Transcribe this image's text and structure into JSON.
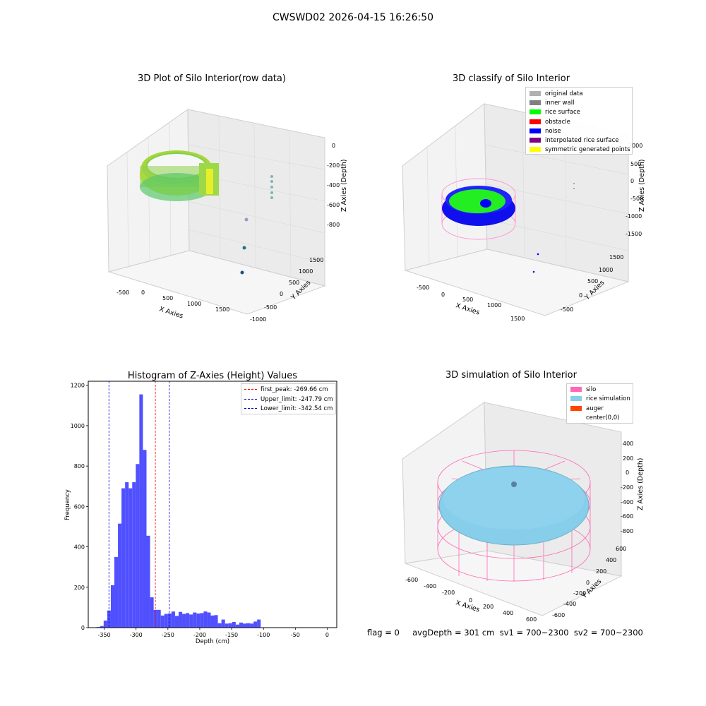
{
  "figure_title": "CWSWD02 2026-04-15 16:26:50",
  "status_line": "flag = 0     avgDepth = 301 cm  sv1 = 700~2300  sv2 = 700~2300",
  "colors": {
    "silo": "#ff69b4",
    "rice_simulation": "#87ceeb",
    "auger": "#ff4500",
    "original": "#b0b0b0",
    "inner_wall": "#808080",
    "rice_surface": "#00ff00",
    "obstacle": "#ff0000",
    "noise": "#0000ff",
    "interp": "#800080",
    "symmetric": "#ffff00",
    "hist_bar": "#5050ff",
    "peak_line": "#ff0000",
    "limit_line": "#0000cc"
  },
  "panels": {
    "raw": {
      "title": "3D Plot of Silo Interior(row data)",
      "x_label": "X Axies",
      "y_label": "Y Axies",
      "z_label": "Z Axies (Depth)",
      "x_ticks": [
        "-500",
        "0",
        "500",
        "1000",
        "1500"
      ],
      "y_ticks": [
        "1500",
        "1000",
        "500",
        "0",
        "-500",
        "-1000"
      ],
      "z_ticks": [
        "0",
        "-200",
        "-400",
        "-600",
        "-800"
      ]
    },
    "classify": {
      "title": "3D classify of Silo Interior",
      "x_label": "X Axies",
      "y_label": "Y Axies",
      "z_label": "Z Axies (Depth)",
      "x_ticks": [
        "-500",
        "0",
        "500",
        "1000",
        "1500"
      ],
      "y_ticks": [
        "1500",
        "1000",
        "500",
        "0",
        "-500"
      ],
      "z_ticks": [
        "1000",
        "500",
        "0",
        "-500",
        "-1000",
        "-1500"
      ],
      "legend": [
        "original data",
        "inner wall",
        "rice surface",
        "obstacle",
        "noise",
        "interpolated rice surface",
        "symmetric generated points"
      ]
    },
    "simulation": {
      "title": "3D simulation of Silo Interior",
      "x_label": "X Axies",
      "y_label": "Y Axies",
      "z_label": "Z Axies (Depth)",
      "x_ticks": [
        "-600",
        "-400",
        "-200",
        "0",
        "200",
        "400",
        "600"
      ],
      "y_ticks": [
        "600",
        "400",
        "200",
        "0",
        "-200",
        "-400",
        "-600"
      ],
      "z_ticks": [
        "400",
        "200",
        "0",
        "-200",
        "-400",
        "-600",
        "-800"
      ],
      "legend": [
        "silo",
        "rice simulation",
        "auger",
        "center(0,0)"
      ]
    }
  },
  "chart_data": {
    "type": "bar",
    "title": "Histogram of Z-Axies (Height) Values",
    "xlabel": "Depth (cm)",
    "ylabel": "Frequency",
    "xlim": [
      -375,
      15
    ],
    "ylim": [
      0,
      1220
    ],
    "x_ticks": [
      -350,
      -300,
      -250,
      -200,
      -150,
      -100,
      -50,
      0
    ],
    "y_ticks": [
      0,
      200,
      400,
      600,
      800,
      1000,
      1200
    ],
    "bin_width": 5.6,
    "bin_edges_start": -362,
    "values": [
      3,
      8,
      35,
      85,
      210,
      350,
      515,
      690,
      720,
      690,
      720,
      810,
      1155,
      880,
      455,
      150,
      88,
      88,
      60,
      68,
      70,
      80,
      58,
      78,
      68,
      72,
      65,
      75,
      70,
      72,
      80,
      75,
      60,
      62,
      22,
      40,
      20,
      22,
      28,
      15,
      25,
      20,
      22,
      20,
      30,
      40
    ],
    "lines": [
      {
        "label": "first_peak: -269.66 cm",
        "x": -269.66,
        "style": "peak"
      },
      {
        "label": "Upper_limit: -247.79 cm",
        "x": -247.79,
        "style": "limit"
      },
      {
        "label": "Lower_limit: -342.54 cm",
        "x": -342.54,
        "style": "limit"
      }
    ],
    "grid": false,
    "legend_position": "top-right"
  }
}
